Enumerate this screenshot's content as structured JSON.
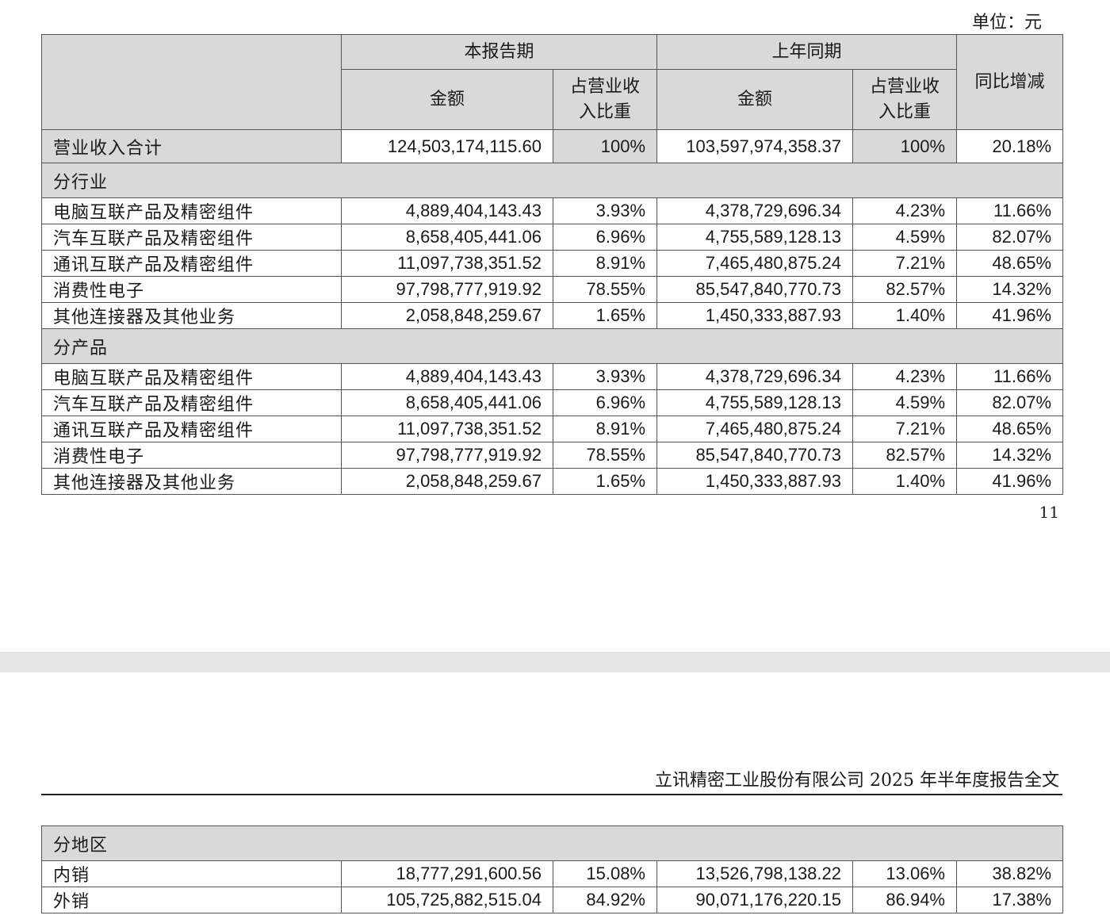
{
  "unit_label": "单位：元",
  "page_number": "11",
  "running_header": "立讯精密工业股份有限公司 2025 年半年度报告全文",
  "headers": {
    "current_period": "本报告期",
    "prior_period": "上年同期",
    "yoy": "同比增减",
    "amount": "金额",
    "share": "占营业收入比重"
  },
  "total": {
    "label": "营业收入合计",
    "cur_amount": "124,503,174,115.60",
    "cur_share": "100%",
    "prev_amount": "103,597,974,358.37",
    "prev_share": "100%",
    "yoy": "20.18%"
  },
  "by_industry": {
    "title": "分行业",
    "rows": [
      {
        "label": "电脑互联产品及精密组件",
        "cur_amount": "4,889,404,143.43",
        "cur_share": "3.93%",
        "prev_amount": "4,378,729,696.34",
        "prev_share": "4.23%",
        "yoy": "11.66%"
      },
      {
        "label": "汽车互联产品及精密组件",
        "cur_amount": "8,658,405,441.06",
        "cur_share": "6.96%",
        "prev_amount": "4,755,589,128.13",
        "prev_share": "4.59%",
        "yoy": "82.07%"
      },
      {
        "label": "通讯互联产品及精密组件",
        "cur_amount": "11,097,738,351.52",
        "cur_share": "8.91%",
        "prev_amount": "7,465,480,875.24",
        "prev_share": "7.21%",
        "yoy": "48.65%"
      },
      {
        "label": "消费性电子",
        "cur_amount": "97,798,777,919.92",
        "cur_share": "78.55%",
        "prev_amount": "85,547,840,770.73",
        "prev_share": "82.57%",
        "yoy": "14.32%"
      },
      {
        "label": "其他连接器及其他业务",
        "cur_amount": "2,058,848,259.67",
        "cur_share": "1.65%",
        "prev_amount": "1,450,333,887.93",
        "prev_share": "1.40%",
        "yoy": "41.96%"
      }
    ]
  },
  "by_product": {
    "title": "分产品",
    "rows": [
      {
        "label": "电脑互联产品及精密组件",
        "cur_amount": "4,889,404,143.43",
        "cur_share": "3.93%",
        "prev_amount": "4,378,729,696.34",
        "prev_share": "4.23%",
        "yoy": "11.66%"
      },
      {
        "label": "汽车互联产品及精密组件",
        "cur_amount": "8,658,405,441.06",
        "cur_share": "6.96%",
        "prev_amount": "4,755,589,128.13",
        "prev_share": "4.59%",
        "yoy": "82.07%"
      },
      {
        "label": "通讯互联产品及精密组件",
        "cur_amount": "11,097,738,351.52",
        "cur_share": "8.91%",
        "prev_amount": "7,465,480,875.24",
        "prev_share": "7.21%",
        "yoy": "48.65%"
      },
      {
        "label": "消费性电子",
        "cur_amount": "97,798,777,919.92",
        "cur_share": "78.55%",
        "prev_amount": "85,547,840,770.73",
        "prev_share": "82.57%",
        "yoy": "14.32%"
      },
      {
        "label": "其他连接器及其他业务",
        "cur_amount": "2,058,848,259.67",
        "cur_share": "1.65%",
        "prev_amount": "1,450,333,887.93",
        "prev_share": "1.40%",
        "yoy": "41.96%"
      }
    ]
  },
  "by_region": {
    "title": "分地区",
    "rows": [
      {
        "label": "内销",
        "cur_amount": "18,777,291,600.56",
        "cur_share": "15.08%",
        "prev_amount": "13,526,798,138.22",
        "prev_share": "13.06%",
        "yoy": "38.82%"
      },
      {
        "label": "外销",
        "cur_amount": "105,725,882,515.04",
        "cur_share": "84.92%",
        "prev_amount": "90,071,176,220.15",
        "prev_share": "86.94%",
        "yoy": "17.38%"
      }
    ]
  }
}
